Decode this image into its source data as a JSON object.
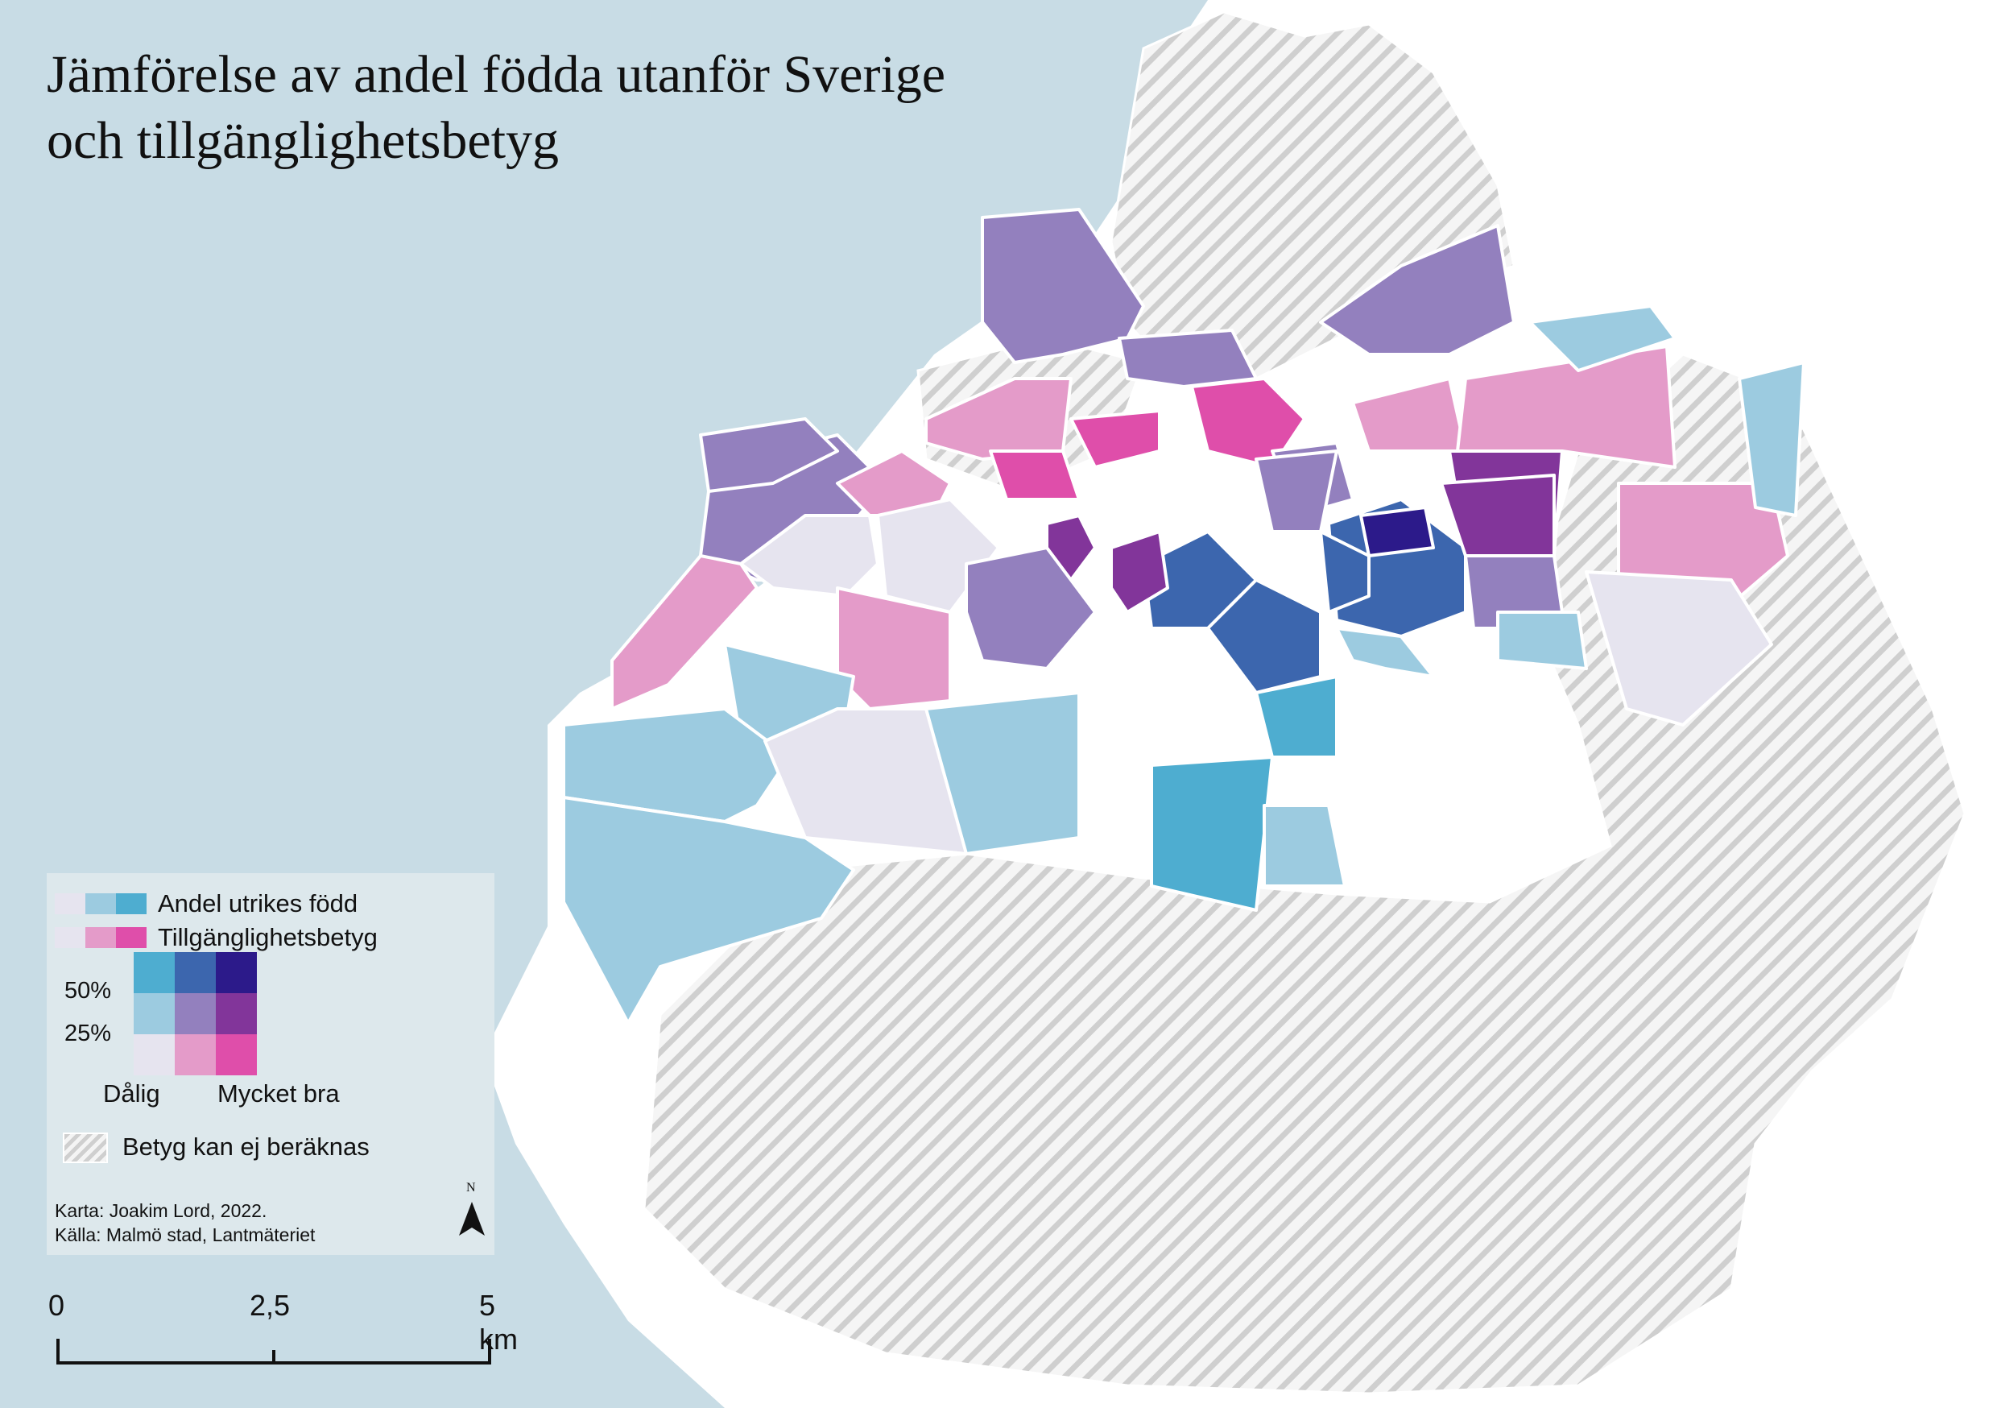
{
  "title": {
    "line1": "Jämförelse av andel födda utanför Sverige",
    "line2": "och tillgänglighetsbetyg"
  },
  "colors": {
    "water": "#c8dce5",
    "land": "#ffffff",
    "hatch_gray": "#cfcfcf",
    "boundary": "#ffffff",
    "bivariate": {
      "low_foreign_poor": "#e6e4ef",
      "low_foreign_mid": "#e49bc9",
      "low_foreign_verygood": "#df4eaa",
      "mid_foreign_poor": "#9ccbe0",
      "mid_foreign_mid": "#9380be",
      "mid_foreign_verygood": "#82359a",
      "high_foreign_poor": "#4eadd0",
      "high_foreign_mid": "#3c66ae",
      "high_foreign_verygood": "#2c1a8a"
    }
  },
  "legend": {
    "foreign_born_label": "Andel utrikes född",
    "accessibility_label": "Tillgänglighetsbetyg",
    "y_tick_high": "50%",
    "y_tick_low": "25%",
    "x_label_low": "Dålig",
    "x_label_high": "Mycket bra",
    "no_data_label": "Betyg kan ej beräknas",
    "credit_line1": "Karta: Joakim Lord, 2022.",
    "credit_line2": "Källa: Malmö stad, Lantmäteriet",
    "north_label": "N"
  },
  "scalebar": {
    "labels": [
      "0",
      "2,5",
      "5 km"
    ]
  },
  "districts": [
    {
      "category": "mid_foreign_mid"
    },
    {
      "category": "mid_foreign_mid"
    },
    {
      "category": "low_foreign_mid"
    },
    {
      "category": "low_foreign_mid"
    },
    {
      "category": "low_foreign_poor"
    },
    {
      "category": "low_foreign_poor"
    },
    {
      "category": "low_foreign_mid"
    },
    {
      "category": "low_foreign_mid"
    },
    {
      "category": "mid_foreign_poor"
    },
    {
      "category": "mid_foreign_poor"
    },
    {
      "category": "low_foreign_poor"
    },
    {
      "category": "mid_foreign_poor"
    },
    {
      "category": "mid_foreign_poor"
    },
    {
      "category": "high_foreign_poor"
    },
    {
      "category": "high_foreign_poor"
    },
    {
      "category": "mid_foreign_poor"
    },
    {
      "category": "high_foreign_mid"
    },
    {
      "category": "high_foreign_mid"
    },
    {
      "category": "high_foreign_mid"
    },
    {
      "category": "high_foreign_verygood"
    },
    {
      "category": "mid_foreign_verygood"
    },
    {
      "category": "mid_foreign_verygood"
    },
    {
      "category": "mid_foreign_verygood"
    },
    {
      "category": "low_foreign_verygood"
    },
    {
      "category": "low_foreign_verygood"
    },
    {
      "category": "low_foreign_verygood"
    },
    {
      "category": "mid_foreign_mid"
    },
    {
      "category": "mid_foreign_mid"
    },
    {
      "category": "mid_foreign_mid"
    },
    {
      "category": "mid_foreign_mid"
    },
    {
      "category": "mid_foreign_mid"
    },
    {
      "category": "low_foreign_mid"
    },
    {
      "category": "low_foreign_mid"
    },
    {
      "category": "low_foreign_mid"
    },
    {
      "category": "mid_foreign_poor"
    },
    {
      "category": "mid_foreign_poor"
    },
    {
      "category": "low_foreign_poor"
    },
    {
      "category": "mid_foreign_poor"
    },
    {
      "category": "mid_foreign_mid"
    },
    {
      "category": "high_foreign_mid"
    },
    {
      "category": "mid_foreign_poor"
    },
    {
      "category": "mid_foreign_verygood"
    },
    {
      "category": "mid_foreign_mid"
    }
  ]
}
